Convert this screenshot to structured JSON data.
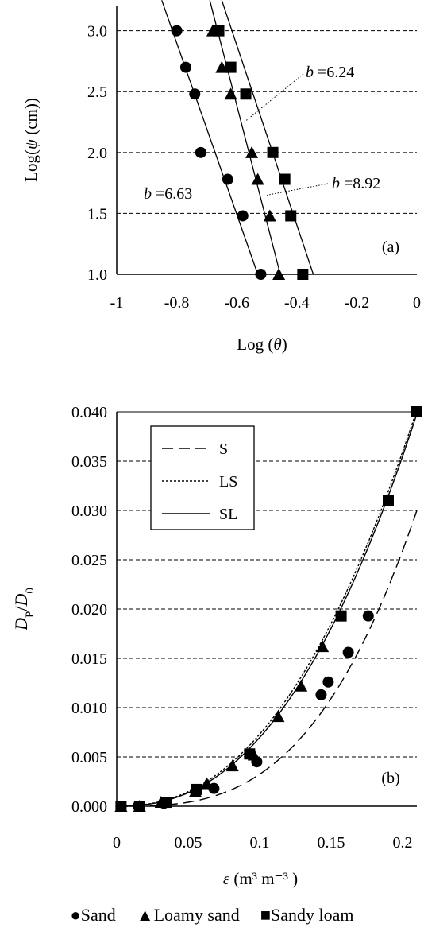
{
  "chart_data": [
    {
      "type": "scatter",
      "panel_label": "(a)",
      "xlabel_prefix": "Log (",
      "xlabel_symbol": "θ",
      "xlabel_suffix": ")",
      "ylabel_prefix": "Log(",
      "ylabel_symbol": "ψ",
      "ylabel_suffix": " (cm))",
      "xlim": [
        -1,
        0
      ],
      "ylim": [
        1.0,
        3.2
      ],
      "xticks": [
        -1,
        -0.8,
        -0.6,
        -0.4,
        -0.2,
        0
      ],
      "xtick_labels": [
        "-1",
        "-0.8",
        "-0.6",
        "-0.4",
        "-0.2",
        "0"
      ],
      "yticks": [
        1.0,
        1.5,
        2.0,
        2.5,
        3.0
      ],
      "ytick_labels": [
        "1.0",
        "1.5",
        "2.0",
        "2.5",
        "3.0"
      ],
      "grid": "horizontal dashed",
      "series": [
        {
          "name": "Sand",
          "marker": "circle",
          "x": [
            -0.52,
            -0.58,
            -0.63,
            -0.72,
            -0.74,
            -0.77,
            -0.8
          ],
          "y": [
            1.0,
            1.48,
            1.78,
            2.0,
            2.48,
            2.7,
            3.0
          ],
          "fit": [
            [
              -0.53,
              1.0
            ],
            [
              -0.85,
              3.25
            ]
          ]
        },
        {
          "name": "Loamy sand",
          "marker": "triangle",
          "x": [
            -0.46,
            -0.49,
            -0.53,
            -0.55,
            -0.62,
            -0.65,
            -0.68
          ],
          "y": [
            1.0,
            1.48,
            1.78,
            2.0,
            2.48,
            2.7,
            3.0
          ],
          "fit": [
            [
              -0.455,
              1.0
            ],
            [
              -0.69,
              3.25
            ]
          ]
        },
        {
          "name": "Sandy loam",
          "marker": "square",
          "x": [
            -0.38,
            -0.42,
            -0.44,
            -0.48,
            -0.57,
            -0.62,
            -0.66
          ],
          "y": [
            1.0,
            1.48,
            1.78,
            2.0,
            2.48,
            2.7,
            3.0
          ],
          "fit": [
            [
              -0.345,
              1.0
            ],
            [
              -0.65,
              3.25
            ]
          ]
        }
      ],
      "annotations": [
        {
          "prefix": "b",
          "value": " =6.24"
        },
        {
          "prefix": "b",
          "value": " =8.92"
        },
        {
          "prefix": "b",
          "value": " =6.63"
        }
      ]
    },
    {
      "type": "scatter",
      "panel_label": "(b)",
      "xlabel_symbol": "ε",
      "xlabel_units": "(m³ m⁻³ )",
      "ylabel": "DP/D0",
      "xlim": [
        0,
        0.21
      ],
      "ylim": [
        0,
        0.04
      ],
      "xticks": [
        0,
        0.05,
        0.1,
        0.15,
        0.2
      ],
      "xtick_labels": [
        "0",
        "0.05",
        "0.1",
        "0.15",
        "0.2"
      ],
      "yticks": [
        0,
        0.005,
        0.01,
        0.015,
        0.02,
        0.025,
        0.03,
        0.035,
        0.04
      ],
      "ytick_labels": [
        "0.000",
        "0.005",
        "0.010",
        "0.015",
        "0.020",
        "0.025",
        "0.030",
        "0.035",
        "0.040"
      ],
      "grid": "horizontal dashed",
      "curve_legend": [
        "S",
        "LS",
        "SL"
      ],
      "series": [
        {
          "name": "Sand",
          "marker": "circle",
          "x": [
            0.003,
            0.015,
            0.033,
            0.055,
            0.068,
            0.098,
            0.143,
            0.148,
            0.162,
            0.176
          ],
          "y": [
            0.0,
            0.0,
            0.0003,
            0.0015,
            0.0018,
            0.0045,
            0.0113,
            0.0126,
            0.0156,
            0.0193
          ]
        },
        {
          "name": "Loamy sand",
          "marker": "triangle",
          "x": [
            0.003,
            0.016,
            0.031,
            0.055,
            0.063,
            0.081,
            0.096,
            0.113,
            0.129,
            0.144
          ],
          "y": [
            0.0,
            0.0,
            0.0004,
            0.0015,
            0.0023,
            0.0041,
            0.0052,
            0.0091,
            0.0122,
            0.0162
          ]
        },
        {
          "name": "Sandy loam",
          "marker": "square",
          "x": [
            0.003,
            0.016,
            0.035,
            0.056,
            0.093,
            0.157,
            0.19,
            0.21
          ],
          "y": [
            0.0,
            0.0,
            0.0004,
            0.0017,
            0.0053,
            0.0193,
            0.031,
            0.04
          ]
        }
      ],
      "curves": [
        {
          "name": "S",
          "style": "long-dash",
          "a": 0.03,
          "b": 0.21,
          "n": 3.0
        },
        {
          "name": "LS",
          "style": "short-dash",
          "a": 0.0402,
          "b": 0.21,
          "n": 2.3
        },
        {
          "name": "SL",
          "style": "solid",
          "a": 0.0398,
          "b": 0.21,
          "n": 2.35
        }
      ]
    }
  ],
  "legend": {
    "sand": "●Sand",
    "loamy_sand": "▲Loamy sand",
    "sandy_loam": "■Sandy loam"
  }
}
